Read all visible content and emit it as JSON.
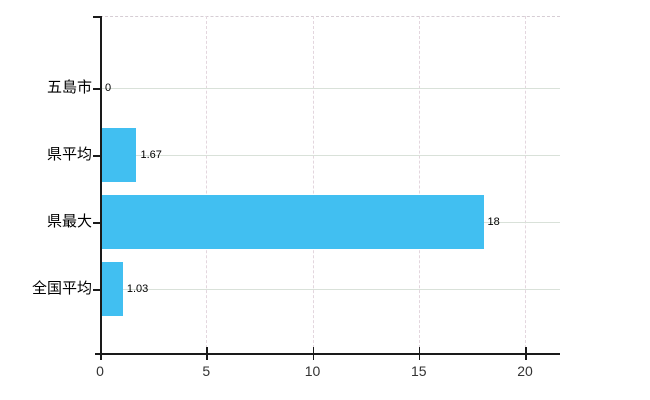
{
  "chart_data": {
    "type": "bar",
    "orientation": "horizontal",
    "title": "",
    "categories": [
      "五島市",
      "県平均",
      "県最大",
      "全国平均"
    ],
    "values": [
      0,
      1.67,
      18,
      1.03
    ],
    "value_labels": [
      "0",
      "1.67",
      "18",
      "1.03"
    ],
    "x_tick_labels": [
      "0",
      "5",
      "10",
      "15",
      "20"
    ],
    "x_tick_values": [
      0,
      5,
      10,
      15,
      20
    ],
    "xlim": [
      0,
      21.65
    ],
    "grid": true,
    "legend_position": "none",
    "colors": {
      "bar": "#41bff1",
      "axis": "#1a1a1a",
      "h_grid": "#d9e1d9",
      "v_grid": "#e3d6de",
      "top_border": "#d6cdd4",
      "category_label": "#000000",
      "value_label": "#000000",
      "tick_label": "#333333",
      "background": "#ffffff"
    }
  }
}
